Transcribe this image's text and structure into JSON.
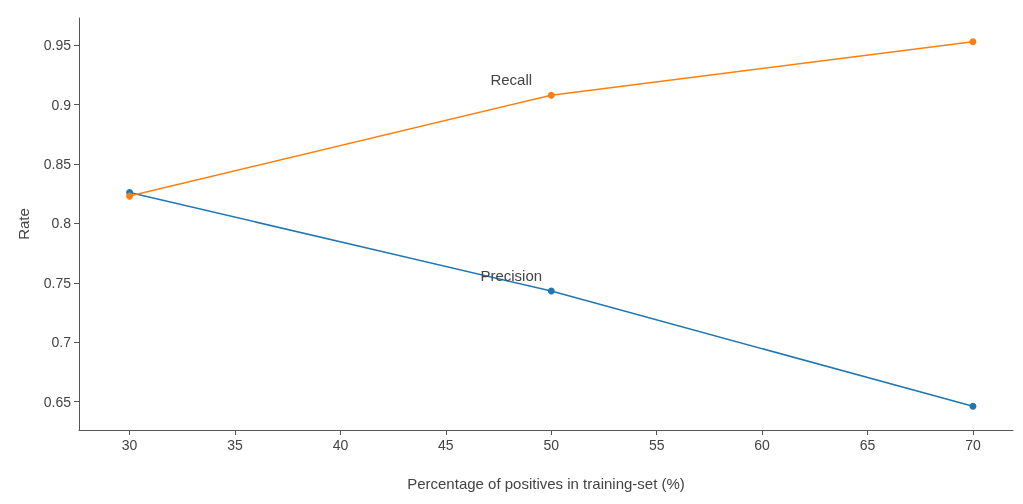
{
  "chart_data": {
    "type": "line",
    "xlabel": "Percentage of positives in training-set (%)",
    "ylabel": "Rate",
    "x": [
      30,
      50,
      70
    ],
    "series": [
      {
        "name": "Precision",
        "color": "#1f77b4",
        "values": [
          0.826,
          0.743,
          0.646
        ]
      },
      {
        "name": "Recall",
        "color": "#ff7f0e",
        "values": [
          0.823,
          0.908,
          0.953
        ]
      }
    ],
    "xlim": [
      27.6,
      71.9
    ],
    "xticks": [
      30,
      35,
      40,
      45,
      50,
      55,
      60,
      65,
      70
    ],
    "ylim": [
      0.626,
      0.973
    ],
    "yticks": [
      0.65,
      0.7,
      0.75,
      0.8,
      0.85,
      0.9,
      0.95
    ],
    "grid": false,
    "legend": false,
    "marker": "circle",
    "line_style": "solid"
  }
}
